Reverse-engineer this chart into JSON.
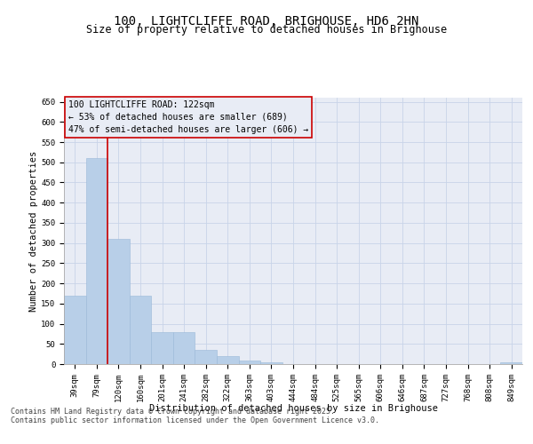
{
  "title": "100, LIGHTCLIFFE ROAD, BRIGHOUSE, HD6 2HN",
  "subtitle": "Size of property relative to detached houses in Brighouse",
  "xlabel": "Distribution of detached houses by size in Brighouse",
  "ylabel": "Number of detached properties",
  "bins": [
    "39sqm",
    "79sqm",
    "120sqm",
    "160sqm",
    "201sqm",
    "241sqm",
    "282sqm",
    "322sqm",
    "363sqm",
    "403sqm",
    "444sqm",
    "484sqm",
    "525sqm",
    "565sqm",
    "606sqm",
    "646sqm",
    "687sqm",
    "727sqm",
    "768sqm",
    "808sqm",
    "849sqm"
  ],
  "bar_values": [
    170,
    510,
    310,
    170,
    80,
    80,
    35,
    20,
    8,
    5,
    1,
    0,
    0,
    0,
    0,
    0,
    0,
    0,
    0,
    0,
    4
  ],
  "bar_color": "#b8cfe8",
  "bar_edge_color": "#9ab8d8",
  "grid_color": "#c8d4e8",
  "background_color": "#e8ecf5",
  "fig_background_color": "#ffffff",
  "ref_line_color": "#cc0000",
  "annotation_text": "100 LIGHTCLIFFE ROAD: 122sqm\n← 53% of detached houses are smaller (689)\n47% of semi-detached houses are larger (606) →",
  "ylim": [
    0,
    660
  ],
  "yticks": [
    0,
    50,
    100,
    150,
    200,
    250,
    300,
    350,
    400,
    450,
    500,
    550,
    600,
    650
  ],
  "footer_line1": "Contains HM Land Registry data © Crown copyright and database right 2025.",
  "footer_line2": "Contains public sector information licensed under the Open Government Licence v3.0.",
  "title_fontsize": 10,
  "subtitle_fontsize": 8.5,
  "axis_label_fontsize": 7.5,
  "tick_fontsize": 6.5,
  "annotation_fontsize": 7,
  "footer_fontsize": 6
}
